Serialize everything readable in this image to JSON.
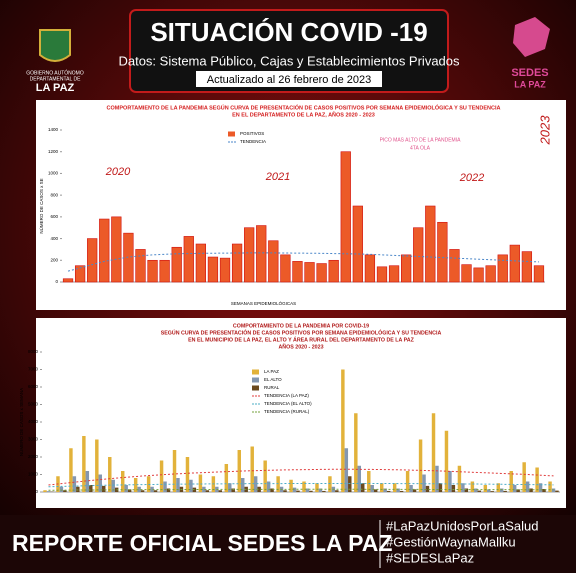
{
  "header": {
    "title": "SITUACIÓN COVID -19",
    "subtitle": "Datos: Sistema Público, Cajas y Establecimientos Privados",
    "updated": "Actualizado al  26  febrero  de  2023",
    "left_logo": [
      "GOBIERNO AUTÓNOMO",
      "DEPARTAMENTAL DE",
      "LA PAZ"
    ],
    "right_logo": [
      "SEDES",
      "LA PAZ"
    ]
  },
  "chart_data": [
    {
      "type": "bar",
      "title": [
        "COMPORTAMIENTO DE LA PANDEMIA SEGÚN CURVA DE PRESENTACIÓN DE CASOS POSITIVOS POR SEMANA EPIDEMIOLÓGICA Y SU TENDENCIA",
        "EN EL DEPARTAMENTO DE LA PAZ, AÑOS 2020 - 2023"
      ],
      "y_label": "NÚMERO DE CASOS x SE",
      "x_label": "SEMANAS EPIDEMIOLÓGICAS",
      "annotations": [
        "2020",
        "2021",
        "2022",
        "2023",
        "PICO MAS ALTO DE LA PANDEMIA",
        "4TA OLA"
      ],
      "ylim": [
        0,
        1400
      ],
      "yticks": [
        0,
        200,
        400,
        600,
        800,
        1000,
        1200,
        1400
      ],
      "grid": false,
      "legend": "top",
      "series": [
        {
          "name": "POSITIVOS",
          "color": "#ec5a28",
          "kind": "bar",
          "values": [
            30,
            150,
            400,
            580,
            600,
            450,
            300,
            200,
            200,
            320,
            420,
            350,
            230,
            220,
            350,
            500,
            520,
            380,
            250,
            190,
            180,
            170,
            200,
            1200,
            700,
            250,
            140,
            150,
            250,
            500,
            700,
            550,
            300,
            160,
            130,
            150,
            250,
            340,
            280,
            150
          ]
        },
        {
          "name": "TENDENCIA",
          "color": "#4a86c8",
          "kind": "line",
          "values": [
            100,
            130,
            160,
            190,
            210,
            230,
            240,
            250,
            255,
            260,
            262,
            264,
            265,
            266,
            267,
            268,
            268,
            268,
            267,
            266,
            265,
            264,
            262,
            260,
            258,
            255,
            250,
            245,
            240,
            235,
            230,
            225,
            220,
            215,
            210,
            205,
            200,
            195,
            190,
            185
          ]
        }
      ]
    },
    {
      "type": "bar",
      "title": [
        "COMPORTAMIENTO DE LA PANDEMIA POR COVID-19",
        "SEGÚN CURVA DE PRESENTACIÓN DE CASOS POSITIVOS POR SEMANA EPIDEMIOLÓGICA Y SU TENDENCIA",
        "EN EL  MUNICIPIO DE LA PAZ, EL ALTO Y ÁREA RURAL DEL DEPARTAMENTO DE LA PAZ",
        "AÑOS 2020 - 2023"
      ],
      "y_label": "NÚMERO DE CASOS x SEMANA",
      "ylim": [
        0,
        8000
      ],
      "yticks": [
        0,
        1000,
        2000,
        3000,
        4000,
        5000,
        6000,
        7000,
        8000
      ],
      "grid": false,
      "legend": "top-center",
      "series": [
        {
          "name": "LA PAZ",
          "color": "#e2b23a",
          "kind": "bar",
          "values": [
            100,
            900,
            2500,
            3200,
            3000,
            2000,
            1200,
            800,
            900,
            1800,
            2400,
            2000,
            1000,
            900,
            1600,
            2400,
            2600,
            1800,
            900,
            700,
            600,
            500,
            900,
            7000,
            4500,
            1200,
            500,
            500,
            1200,
            3000,
            4500,
            3500,
            1500,
            600,
            400,
            500,
            1200,
            1700,
            1400,
            600
          ]
        },
        {
          "name": "EL ALTO",
          "color": "#8497b0",
          "kind": "bar",
          "values": [
            50,
            300,
            900,
            1200,
            1000,
            700,
            400,
            300,
            300,
            600,
            800,
            700,
            300,
            300,
            500,
            800,
            900,
            600,
            300,
            250,
            200,
            200,
            300,
            2500,
            1500,
            400,
            200,
            200,
            400,
            1000,
            1500,
            1200,
            500,
            200,
            150,
            200,
            400,
            600,
            500,
            200
          ]
        },
        {
          "name": "RURAL",
          "color": "#6b4a1e",
          "kind": "bar",
          "values": [
            20,
            100,
            300,
            400,
            350,
            250,
            150,
            100,
            100,
            200,
            300,
            250,
            100,
            100,
            200,
            300,
            300,
            200,
            100,
            80,
            70,
            60,
            100,
            900,
            500,
            150,
            60,
            60,
            150,
            350,
            500,
            400,
            200,
            80,
            50,
            60,
            150,
            200,
            170,
            80
          ]
        },
        {
          "name": "TENDENCIA (LA PAZ)",
          "color": "#e03c3c",
          "kind": "line",
          "values": [
            400,
            480,
            560,
            640,
            710,
            780,
            840,
            900,
            950,
            1000,
            1040,
            1080,
            1110,
            1140,
            1170,
            1200,
            1220,
            1240,
            1260,
            1270,
            1280,
            1290,
            1300,
            1300,
            1295,
            1290,
            1280,
            1270,
            1250,
            1230,
            1210,
            1180,
            1150,
            1120,
            1090,
            1060,
            1030,
            1000,
            960,
            920
          ]
        },
        {
          "name": "TENDENCIA (EL ALTO)",
          "color": "#4bacc6",
          "kind": "line",
          "values": [
            300,
            320,
            340,
            360,
            380,
            395,
            410,
            420,
            430,
            440,
            448,
            455,
            460,
            465,
            470,
            474,
            478,
            480,
            482,
            484,
            485,
            486,
            487,
            488,
            487,
            486,
            484,
            482,
            478,
            474,
            470,
            465,
            460,
            455,
            448,
            440,
            432,
            424,
            416,
            408
          ]
        },
        {
          "name": "TENDENCIA (RURAL)",
          "color": "#76a03c",
          "kind": "line",
          "values": [
            100,
            105,
            110,
            115,
            120,
            124,
            128,
            132,
            135,
            138,
            140,
            142,
            144,
            146,
            148,
            150,
            151,
            152,
            153,
            154,
            155,
            155,
            155,
            155,
            154,
            153,
            152,
            150,
            148,
            146,
            144,
            142,
            140,
            138,
            136,
            134,
            132,
            130,
            128,
            126
          ]
        }
      ]
    }
  ],
  "footer": {
    "report": "REPORTE OFICIAL SEDES LA PAZ",
    "hashtags": [
      "#LaPazUnidosPorLaSalud",
      "#GestiónWaynaMallku",
      "#SEDESLaPaz"
    ]
  }
}
